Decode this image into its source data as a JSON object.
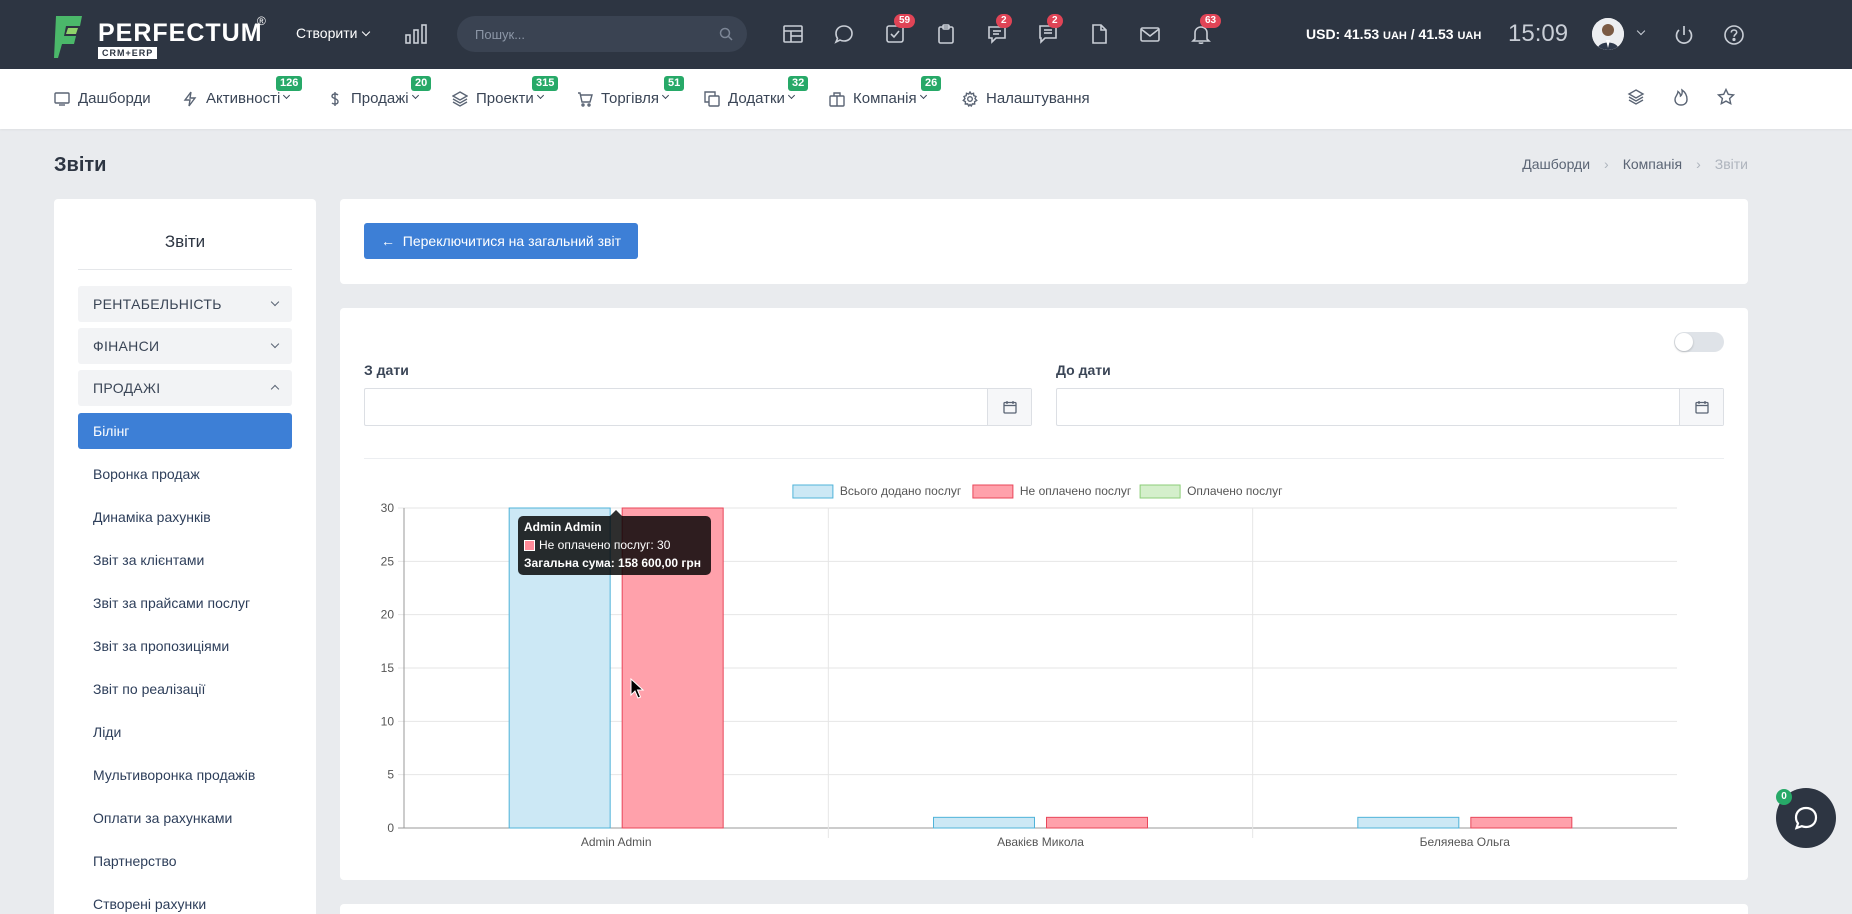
{
  "topbar": {
    "logo_text": "PERFECTUM",
    "logo_sub": "CRM+ERP",
    "logo_reg": "®",
    "create_label": "Створити",
    "search_placeholder": "Пошук...",
    "icons": [
      {
        "name": "table-icon",
        "badge": ""
      },
      {
        "name": "chat-bubble-icon",
        "badge": ""
      },
      {
        "name": "task-check-icon",
        "badge": "59"
      },
      {
        "name": "clipboard-icon",
        "badge": ""
      },
      {
        "name": "support-chat-icon",
        "badge": "2"
      },
      {
        "name": "comments-icon",
        "badge": "2"
      },
      {
        "name": "file-icon",
        "badge": ""
      },
      {
        "name": "mail-icon",
        "badge": ""
      },
      {
        "name": "bell-icon",
        "badge": "63"
      }
    ],
    "currency_prefix": "USD: 41.53",
    "currency_unit1": "UAH",
    "currency_mid": " / 41.53",
    "currency_unit2": "UAH",
    "time": "15:09"
  },
  "nav": {
    "items": [
      {
        "label": "Дашборди",
        "icon": "dashboard-icon",
        "badge": ""
      },
      {
        "label": "Активності",
        "icon": "bolt-icon",
        "badge": "126"
      },
      {
        "label": "Продажі",
        "icon": "dollar-icon",
        "badge": "20"
      },
      {
        "label": "Проекти",
        "icon": "layers-icon",
        "badge": "315"
      },
      {
        "label": "Торгівля",
        "icon": "cart-icon",
        "badge": "51"
      },
      {
        "label": "Додатки",
        "icon": "copy-icon",
        "badge": "32"
      },
      {
        "label": "Компанія",
        "icon": "briefcase-icon",
        "badge": "26"
      },
      {
        "label": "Налаштування",
        "icon": "gear-icon",
        "badge": ""
      }
    ]
  },
  "page": {
    "title": "Звіти",
    "breadcrumb": [
      "Дашборди",
      "Компанія",
      "Звіти"
    ]
  },
  "sidebar": {
    "title": "Звіти",
    "groups": [
      "РЕНТАБЕЛЬНІСТЬ",
      "ФІНАНСИ",
      "ПРОДАЖІ"
    ],
    "items": [
      "Білінг",
      "Воронка продаж",
      "Динаміка рахунків",
      "Звіт за клієнтами",
      "Звіт за прайсами послуг",
      "Звіт за пропозиціями",
      "Звіт по реалізації",
      "Ліди",
      "Мультиворонка продажів",
      "Оплати за рахунками",
      "Партнерство",
      "Створені рахунки"
    ],
    "active_item": "Білінг"
  },
  "main": {
    "switch_button": "Переключитися на загальний звіт",
    "from_label": "З дати",
    "to_label": "До дати",
    "from_value": "",
    "to_value": ""
  },
  "tooltip": {
    "title": "Admin Admin",
    "row": "Не оплачено послуг: 30",
    "footer": "Загальна сума: 158 600,00  грн"
  },
  "chat": {
    "badge": "0"
  },
  "chart_data": {
    "type": "bar",
    "categories": [
      "Admin Admin",
      "Авакієв Микола",
      "Беляяева Ольга"
    ],
    "series": [
      {
        "name": "Всього додано послуг",
        "values": [
          30,
          1,
          1
        ],
        "fill": "#cce8f5",
        "stroke": "#4fb3d9"
      },
      {
        "name": "Не оплачено послуг",
        "values": [
          30,
          1,
          1
        ],
        "fill": "#ffa1ab",
        "stroke": "#e8475a"
      },
      {
        "name": "Оплачено послуг",
        "values": [
          0,
          0,
          0
        ],
        "fill": "#d4efcb",
        "stroke": "#8cce78"
      }
    ],
    "ylim": [
      0,
      30
    ],
    "yticks": [
      0,
      5,
      10,
      15,
      20,
      25,
      30
    ],
    "grid": true,
    "legend": "top-center"
  }
}
